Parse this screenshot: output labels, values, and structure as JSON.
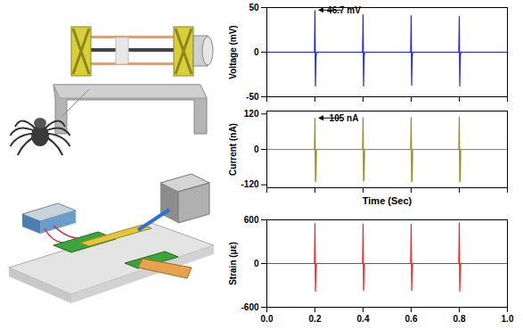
{
  "chart_data": [
    {
      "type": "line",
      "ylabel": "Voltage (mV)",
      "color": "#1f1fe6",
      "x": [
        0,
        0.198,
        0.2,
        0.202,
        0.204,
        0.206,
        0.398,
        0.4,
        0.402,
        0.404,
        0.406,
        0.598,
        0.6,
        0.602,
        0.604,
        0.606,
        0.798,
        0.8,
        0.802,
        0.804,
        0.806,
        1.0
      ],
      "values": [
        0,
        0,
        46.7,
        -38,
        -6,
        0,
        0,
        42,
        -38,
        -5,
        0,
        0,
        41,
        -37,
        -5,
        0,
        0,
        40,
        -38,
        -5,
        0,
        0
      ],
      "xlim": [
        0,
        1.0
      ],
      "xticks": [
        0,
        0.2,
        0.4,
        0.6,
        0.8,
        1.0
      ],
      "ylim": [
        -50,
        50
      ],
      "yticks": [
        -50,
        0,
        50
      ],
      "tick_labels": "y",
      "grid": false,
      "annotations": [
        {
          "text": "46.7 mV",
          "x": 0.2,
          "y": 46.7
        }
      ]
    },
    {
      "type": "line",
      "ylabel": "Current (nA)",
      "xlabel": "Time (Sec)",
      "color": "#8f8f1f",
      "x": [
        0,
        0.198,
        0.2,
        0.202,
        0.204,
        0.206,
        0.398,
        0.4,
        0.402,
        0.404,
        0.406,
        0.598,
        0.6,
        0.602,
        0.604,
        0.606,
        0.798,
        0.8,
        0.802,
        0.804,
        0.806,
        1.0
      ],
      "values": [
        0,
        0,
        105,
        -110,
        -90,
        0,
        0,
        108,
        -108,
        -100,
        0,
        0,
        108,
        -110,
        -105,
        0,
        0,
        110,
        -110,
        -100,
        0,
        0
      ],
      "xlim": [
        0,
        1.0
      ],
      "xticks": [
        0,
        0.2,
        0.4,
        0.6,
        0.8,
        1.0
      ],
      "ylim": [
        -130,
        130
      ],
      "yticks": [
        -120,
        0,
        120
      ],
      "tick_labels": "y",
      "grid": false,
      "annotations": [
        {
          "text": "105 nA",
          "x": 0.2,
          "y": 105
        }
      ]
    },
    {
      "type": "line",
      "ylabel": "Strain (με)",
      "color": "#ff1a1a",
      "x": [
        0,
        0.198,
        0.2,
        0.202,
        0.204,
        0.206,
        0.398,
        0.4,
        0.402,
        0.404,
        0.406,
        0.598,
        0.6,
        0.602,
        0.604,
        0.606,
        0.798,
        0.8,
        0.802,
        0.804,
        0.806,
        1.0
      ],
      "values": [
        0,
        0,
        550,
        -380,
        -100,
        0,
        0,
        540,
        -370,
        -80,
        0,
        0,
        540,
        -370,
        -90,
        0,
        0,
        560,
        -380,
        -90,
        0,
        0
      ],
      "xlim": [
        0,
        1.0
      ],
      "xticks": [
        {
          "value": 0,
          "label": "0.0"
        },
        {
          "value": 0.2,
          "label": "0.2"
        },
        {
          "value": 0.4,
          "label": "0.4"
        },
        {
          "value": 0.6,
          "label": "0.6"
        },
        {
          "value": 0.8,
          "label": "0.8"
        },
        {
          "value": 1.0,
          "label": "1.0"
        }
      ],
      "ylim": [
        -600,
        600
      ],
      "yticks": [
        -600,
        0,
        600
      ],
      "grid": false
    }
  ]
}
